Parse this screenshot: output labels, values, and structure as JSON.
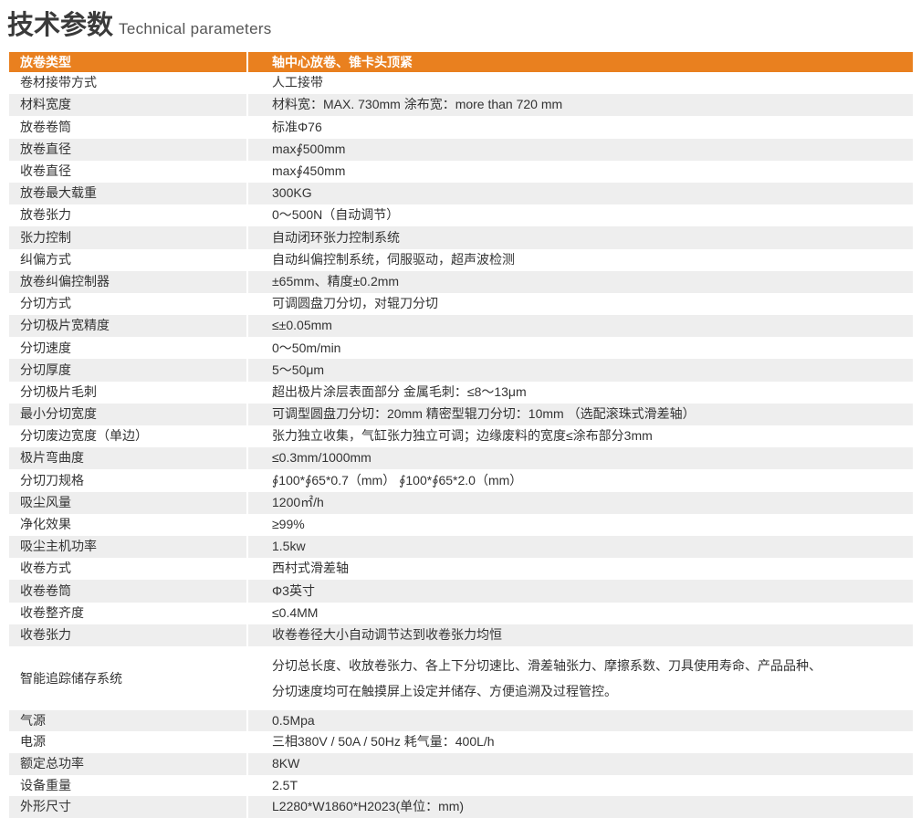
{
  "title": {
    "cn": "技术参数",
    "en": "Technical  parameters"
  },
  "header": {
    "key": "放卷类型",
    "value": "轴中心放卷、锥卡头顶紧"
  },
  "rows": [
    {
      "key": "卷材接带方式",
      "value": "人工接带"
    },
    {
      "key": "材料宽度",
      "value": "材料宽：MAX. 730mm   涂布宽：more than 720 mm"
    },
    {
      "key": "放卷卷筒",
      "value": "标准Φ76"
    },
    {
      "key": "放卷直径",
      "value": "max∮500mm"
    },
    {
      "key": "收卷直径",
      "value": "max∮450mm"
    },
    {
      "key": "放卷最大载重",
      "value": "300KG"
    },
    {
      "key": "放卷张力",
      "value": "0～500N（自动调节）"
    },
    {
      "key": "张力控制",
      "value": "自动闭环张力控制系统"
    },
    {
      "key": "纠偏方式",
      "value": "自动纠偏控制系统，伺服驱动，超声波检测"
    },
    {
      "key": "放卷纠偏控制器",
      "value": "±65mm、精度±0.2mm"
    },
    {
      "key": "分切方式",
      "value": "可调圆盘刀分切，对辊刀分切"
    },
    {
      "key": "分切极片宽精度",
      "value": "≤±0.05mm"
    },
    {
      "key": "分切速度",
      "value": "0～50m/min"
    },
    {
      "key": "分切厚度",
      "value": "5～50μm"
    },
    {
      "key": "分切极片毛刺",
      "value": "超出极片涂层表面部分   金属毛刺：≤8～13μm"
    },
    {
      "key": "最小分切宽度",
      "value": "可调型圆盘刀分切：20mm 精密型辊刀分切：10mm （选配滚珠式滑差轴）"
    },
    {
      "key": "分切废边宽度（单边）",
      "value": "张力独立收集，气缸张力独立可调；边缘废料的宽度≤涂布部分3mm"
    },
    {
      "key": "极片弯曲度",
      "value": "≤0.3mm/1000mm"
    },
    {
      "key": "分切刀规格",
      "value": "∮100*∮65*0.7（mm） ∮100*∮65*2.0（mm）"
    },
    {
      "key": "吸尘风量",
      "value": "1200㎡/h"
    },
    {
      "key": "净化效果",
      "value": "≥99%"
    },
    {
      "key": "吸尘主机功率",
      "value": "1.5kw"
    },
    {
      "key": "收卷方式",
      "value": "西村式滑差轴"
    },
    {
      "key": "收卷卷筒",
      "value": "Φ3英寸"
    },
    {
      "key": "收卷整齐度",
      "value": "≤0.4MM"
    },
    {
      "key": "收卷张力",
      "value": "收卷卷径大小自动调节达到收卷张力均恒"
    }
  ],
  "smart": {
    "key": "智能追踪储存系统",
    "line1": "分切总长度、收放卷张力、各上下分切速比、滑差轴张力、摩擦系数、刀具使用寿命、产品品种、",
    "line2": "分切速度均可在触摸屏上设定并储存、方便追溯及过程管控。"
  },
  "rows2": [
    {
      "key": "气源",
      "value": "0.5Mpa"
    },
    {
      "key": "电源",
      "value": "三相380V / 50A / 50Hz  耗气量：400L/h"
    },
    {
      "key": "额定总功率",
      "value": "8KW"
    },
    {
      "key": "设备重量",
      "value": "2.5T"
    },
    {
      "key": "外形尺寸",
      "value": "L2280*W1860*H2023(单位：mm)"
    }
  ],
  "colors": {
    "header": "#e9801f",
    "row_alt": "#eeeeee"
  }
}
